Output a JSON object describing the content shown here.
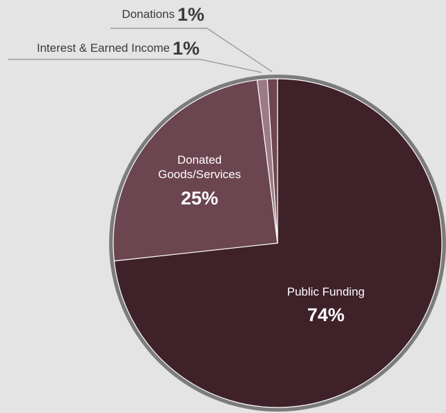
{
  "chart_data": {
    "type": "pie",
    "slices": [
      {
        "label_lines": [
          "Public Funding"
        ],
        "value": 74,
        "value_label": "74%",
        "color": "#3e2129"
      },
      {
        "label_lines": [
          "Donated",
          "Goods/Services"
        ],
        "value": 25,
        "value_label": "25%",
        "color": "#6b4550"
      },
      {
        "label_lines": [
          "Interest & Earned Income"
        ],
        "value": 1,
        "value_label": "1%",
        "color": "#9c7a86"
      },
      {
        "label_lines": [
          "Donations"
        ],
        "value": 1,
        "value_label": "1%",
        "color": "#6e4650"
      }
    ],
    "legend": "none",
    "rim_color": "#7c7c7c",
    "leader_color": "#9a9a9a"
  }
}
